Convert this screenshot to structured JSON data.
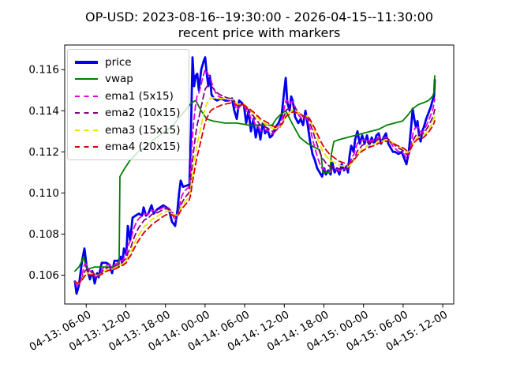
{
  "title": {
    "line1": "OP-USD: 2023-08-16--19:30:00 - 2026-04-15--11:30:00",
    "line2": "recent price with markers"
  },
  "chart_data": {
    "type": "line",
    "title": "OP-USD: 2023-08-16--19:30:00 - 2026-04-15--11:30:00",
    "subtitle": "recent price with markers",
    "xlabel": "",
    "ylabel": "",
    "x_unit": "hours since 04-13 00:00, 15-min bars",
    "xlim": [
      2.74,
      61.66
    ],
    "ylim": [
      0.1046,
      0.1172
    ],
    "grid": false,
    "legend_position": "upper-left",
    "background": "#ffffff",
    "axes_color": "#000000",
    "xticks": [
      {
        "t": 6,
        "label": "04-13: 06-00"
      },
      {
        "t": 12,
        "label": "04-13: 12-00"
      },
      {
        "t": 18,
        "label": "04-13: 18-00"
      },
      {
        "t": 24,
        "label": "04-14: 00-00"
      },
      {
        "t": 30,
        "label": "04-14: 06-00"
      },
      {
        "t": 36,
        "label": "04-14: 12-00"
      },
      {
        "t": 42,
        "label": "04-14: 18-00"
      },
      {
        "t": 48,
        "label": "04-15: 00-00"
      },
      {
        "t": 54,
        "label": "04-15: 06-00"
      },
      {
        "t": 60,
        "label": "04-15: 12-00"
      }
    ],
    "yticks": [
      {
        "v": 0.106,
        "label": "0.106"
      },
      {
        "v": 0.108,
        "label": "0.108"
      },
      {
        "v": 0.11,
        "label": "0.110"
      },
      {
        "v": 0.112,
        "label": "0.112"
      },
      {
        "v": 0.114,
        "label": "0.114"
      },
      {
        "v": 0.116,
        "label": "0.116"
      }
    ],
    "series": [
      {
        "name": "price",
        "color": "#0000ee",
        "style": "solid",
        "width": 2.8,
        "points": [
          [
            4.29,
            0.1057
          ],
          [
            4.53,
            0.1051
          ],
          [
            4.89,
            0.1055
          ],
          [
            5.37,
            0.1067
          ],
          [
            5.73,
            0.1073
          ],
          [
            6.08,
            0.1064
          ],
          [
            6.56,
            0.1058
          ],
          [
            6.92,
            0.1062
          ],
          [
            7.28,
            0.1056
          ],
          [
            7.64,
            0.1061
          ],
          [
            7.88,
            0.1059
          ],
          [
            8.35,
            0.1066
          ],
          [
            9.07,
            0.1066
          ],
          [
            9.55,
            0.1065
          ],
          [
            9.91,
            0.1061
          ],
          [
            10.27,
            0.1067
          ],
          [
            10.86,
            0.1067
          ],
          [
            11.22,
            0.1069
          ],
          [
            11.46,
            0.1065
          ],
          [
            11.7,
            0.1073
          ],
          [
            12.06,
            0.107
          ],
          [
            12.3,
            0.1084
          ],
          [
            12.66,
            0.1077
          ],
          [
            13.02,
            0.1088
          ],
          [
            13.49,
            0.1089
          ],
          [
            13.97,
            0.109
          ],
          [
            14.45,
            0.1089
          ],
          [
            14.69,
            0.1093
          ],
          [
            15.05,
            0.1089
          ],
          [
            15.41,
            0.109
          ],
          [
            15.89,
            0.1094
          ],
          [
            16.24,
            0.109
          ],
          [
            16.72,
            0.1092
          ],
          [
            17.2,
            0.1093
          ],
          [
            17.68,
            0.1094
          ],
          [
            18.16,
            0.1093
          ],
          [
            18.52,
            0.1092
          ],
          [
            18.99,
            0.1086
          ],
          [
            19.47,
            0.1084
          ],
          [
            19.83,
            0.1092
          ],
          [
            20.07,
            0.11
          ],
          [
            20.31,
            0.1106
          ],
          [
            20.67,
            0.1103
          ],
          [
            21.62,
            0.1104
          ],
          [
            21.86,
            0.113
          ],
          [
            22.1,
            0.1166
          ],
          [
            22.34,
            0.1152
          ],
          [
            22.58,
            0.1157
          ],
          [
            22.82,
            0.1158
          ],
          [
            23.06,
            0.115
          ],
          [
            23.42,
            0.116
          ],
          [
            23.78,
            0.1164
          ],
          [
            24.01,
            0.1166
          ],
          [
            24.25,
            0.1158
          ],
          [
            24.49,
            0.1152
          ],
          [
            24.73,
            0.1157
          ],
          [
            24.97,
            0.1148
          ],
          [
            25.33,
            0.1146
          ],
          [
            25.81,
            0.1145
          ],
          [
            26.41,
            0.1146
          ],
          [
            27.0,
            0.1145
          ],
          [
            27.6,
            0.1145
          ],
          [
            28.08,
            0.1146
          ],
          [
            28.44,
            0.114
          ],
          [
            28.8,
            0.1136
          ],
          [
            29.16,
            0.1145
          ],
          [
            29.51,
            0.1144
          ],
          [
            29.87,
            0.1143
          ],
          [
            30.23,
            0.1134
          ],
          [
            30.59,
            0.114
          ],
          [
            30.95,
            0.113
          ],
          [
            31.31,
            0.1136
          ],
          [
            31.67,
            0.1127
          ],
          [
            32.02,
            0.1133
          ],
          [
            32.38,
            0.1126
          ],
          [
            32.74,
            0.1134
          ],
          [
            33.1,
            0.1129
          ],
          [
            33.46,
            0.1131
          ],
          [
            33.82,
            0.1127
          ],
          [
            34.18,
            0.1128
          ],
          [
            34.65,
            0.1132
          ],
          [
            35.13,
            0.1134
          ],
          [
            35.61,
            0.1138
          ],
          [
            35.97,
            0.1149
          ],
          [
            36.21,
            0.1156
          ],
          [
            36.45,
            0.1144
          ],
          [
            36.81,
            0.114
          ],
          [
            37.04,
            0.1147
          ],
          [
            37.28,
            0.1145
          ],
          [
            37.64,
            0.1137
          ],
          [
            38.12,
            0.1134
          ],
          [
            38.48,
            0.1136
          ],
          [
            38.84,
            0.1133
          ],
          [
            39.2,
            0.114
          ],
          [
            39.55,
            0.1133
          ],
          [
            39.91,
            0.1125
          ],
          [
            40.27,
            0.1119
          ],
          [
            40.63,
            0.1116
          ],
          [
            40.99,
            0.1112
          ],
          [
            41.35,
            0.111
          ],
          [
            41.71,
            0.1108
          ],
          [
            42.06,
            0.1112
          ],
          [
            42.3,
            0.1109
          ],
          [
            42.66,
            0.1111
          ],
          [
            43.02,
            0.1109
          ],
          [
            43.26,
            0.1115
          ],
          [
            43.62,
            0.111
          ],
          [
            43.98,
            0.1112
          ],
          [
            44.34,
            0.1109
          ],
          [
            44.69,
            0.1114
          ],
          [
            45.05,
            0.1111
          ],
          [
            45.41,
            0.1113
          ],
          [
            45.65,
            0.111
          ],
          [
            45.89,
            0.1118
          ],
          [
            46.13,
            0.1123
          ],
          [
            46.49,
            0.112
          ],
          [
            46.73,
            0.1126
          ],
          [
            47.08,
            0.113
          ],
          [
            47.44,
            0.1124
          ],
          [
            47.8,
            0.1128
          ],
          [
            48.16,
            0.1124
          ],
          [
            48.52,
            0.1128
          ],
          [
            48.88,
            0.1123
          ],
          [
            49.24,
            0.1127
          ],
          [
            49.6,
            0.1124
          ],
          [
            49.95,
            0.1128
          ],
          [
            50.31,
            0.1129
          ],
          [
            50.67,
            0.1124
          ],
          [
            51.03,
            0.1127
          ],
          [
            51.39,
            0.1129
          ],
          [
            51.75,
            0.1124
          ],
          [
            52.11,
            0.1122
          ],
          [
            52.47,
            0.112
          ],
          [
            52.82,
            0.112
          ],
          [
            53.3,
            0.1119
          ],
          [
            53.78,
            0.112
          ],
          [
            54.14,
            0.1117
          ],
          [
            54.5,
            0.1114
          ],
          [
            54.86,
            0.112
          ],
          [
            55.21,
            0.1132
          ],
          [
            55.45,
            0.1141
          ],
          [
            55.69,
            0.1136
          ],
          [
            55.93,
            0.1132
          ],
          [
            56.17,
            0.1135
          ],
          [
            56.41,
            0.1128
          ],
          [
            56.65,
            0.1125
          ],
          [
            56.89,
            0.113
          ],
          [
            57.13,
            0.1132
          ],
          [
            57.49,
            0.1136
          ],
          [
            57.85,
            0.1139
          ],
          [
            58.21,
            0.1142
          ],
          [
            58.44,
            0.1145
          ],
          [
            58.68,
            0.1147
          ],
          [
            58.79,
            0.1155
          ]
        ]
      },
      {
        "name": "vwap",
        "color": "#008000",
        "style": "solid",
        "width": 1.8,
        "points": [
          [
            4.29,
            0.1062
          ],
          [
            4.89,
            0.1064
          ],
          [
            5.37,
            0.1067
          ],
          [
            5.61,
            0.1069
          ],
          [
            5.96,
            0.1064
          ],
          [
            6.32,
            0.1063
          ],
          [
            7.28,
            0.1064
          ],
          [
            8.47,
            0.1064
          ],
          [
            9.67,
            0.1064
          ],
          [
            10.98,
            0.1064
          ],
          [
            11.1,
            0.1108
          ],
          [
            11.82,
            0.1112
          ],
          [
            12.66,
            0.1116
          ],
          [
            13.85,
            0.112
          ],
          [
            14.81,
            0.1122
          ],
          [
            16.24,
            0.1126
          ],
          [
            17.44,
            0.1129
          ],
          [
            18.87,
            0.1132
          ],
          [
            20.43,
            0.1138
          ],
          [
            21.98,
            0.1144
          ],
          [
            22.58,
            0.1145
          ],
          [
            23.42,
            0.114
          ],
          [
            24.25,
            0.1136
          ],
          [
            25.21,
            0.1135
          ],
          [
            27.0,
            0.1134
          ],
          [
            28.8,
            0.1134
          ],
          [
            30.59,
            0.1133
          ],
          [
            32.38,
            0.1133
          ],
          [
            34.18,
            0.1133
          ],
          [
            34.77,
            0.1136
          ],
          [
            35.37,
            0.1138
          ],
          [
            36.21,
            0.114
          ],
          [
            37.16,
            0.1134
          ],
          [
            38.36,
            0.1127
          ],
          [
            39.55,
            0.1124
          ],
          [
            40.75,
            0.1122
          ],
          [
            41.35,
            0.1121
          ],
          [
            41.59,
            0.1118
          ],
          [
            41.83,
            0.111
          ],
          [
            42.9,
            0.111
          ],
          [
            43.14,
            0.1119
          ],
          [
            43.5,
            0.1125
          ],
          [
            44.34,
            0.1126
          ],
          [
            45.53,
            0.1127
          ],
          [
            46.73,
            0.1128
          ],
          [
            47.92,
            0.1129
          ],
          [
            49.12,
            0.113
          ],
          [
            50.31,
            0.1131
          ],
          [
            51.51,
            0.1133
          ],
          [
            52.7,
            0.1134
          ],
          [
            53.9,
            0.1135
          ],
          [
            54.74,
            0.1138
          ],
          [
            55.45,
            0.1141
          ],
          [
            56.29,
            0.1143
          ],
          [
            57.13,
            0.1144
          ],
          [
            57.85,
            0.1145
          ],
          [
            58.44,
            0.1147
          ],
          [
            58.68,
            0.1149
          ],
          [
            58.79,
            0.1157
          ]
        ]
      },
      {
        "name": "ema1 (5x15)",
        "color": "#e000e0",
        "style": "dashed",
        "width": 1.8,
        "derived": "ema",
        "ema_span": 5,
        "bar_minutes": 15
      },
      {
        "name": "ema2 (10x15)",
        "color": "#850085",
        "style": "dashed",
        "width": 1.8,
        "derived": "ema",
        "ema_span": 10,
        "bar_minutes": 15
      },
      {
        "name": "ema3 (15x15)",
        "color": "#e6e600",
        "style": "dashed",
        "width": 1.8,
        "derived": "ema",
        "ema_span": 15,
        "bar_minutes": 15
      },
      {
        "name": "ema4 (20x15)",
        "color": "#dd0000",
        "style": "dashed",
        "width": 1.8,
        "derived": "ema",
        "ema_span": 20,
        "bar_minutes": 15
      }
    ]
  }
}
